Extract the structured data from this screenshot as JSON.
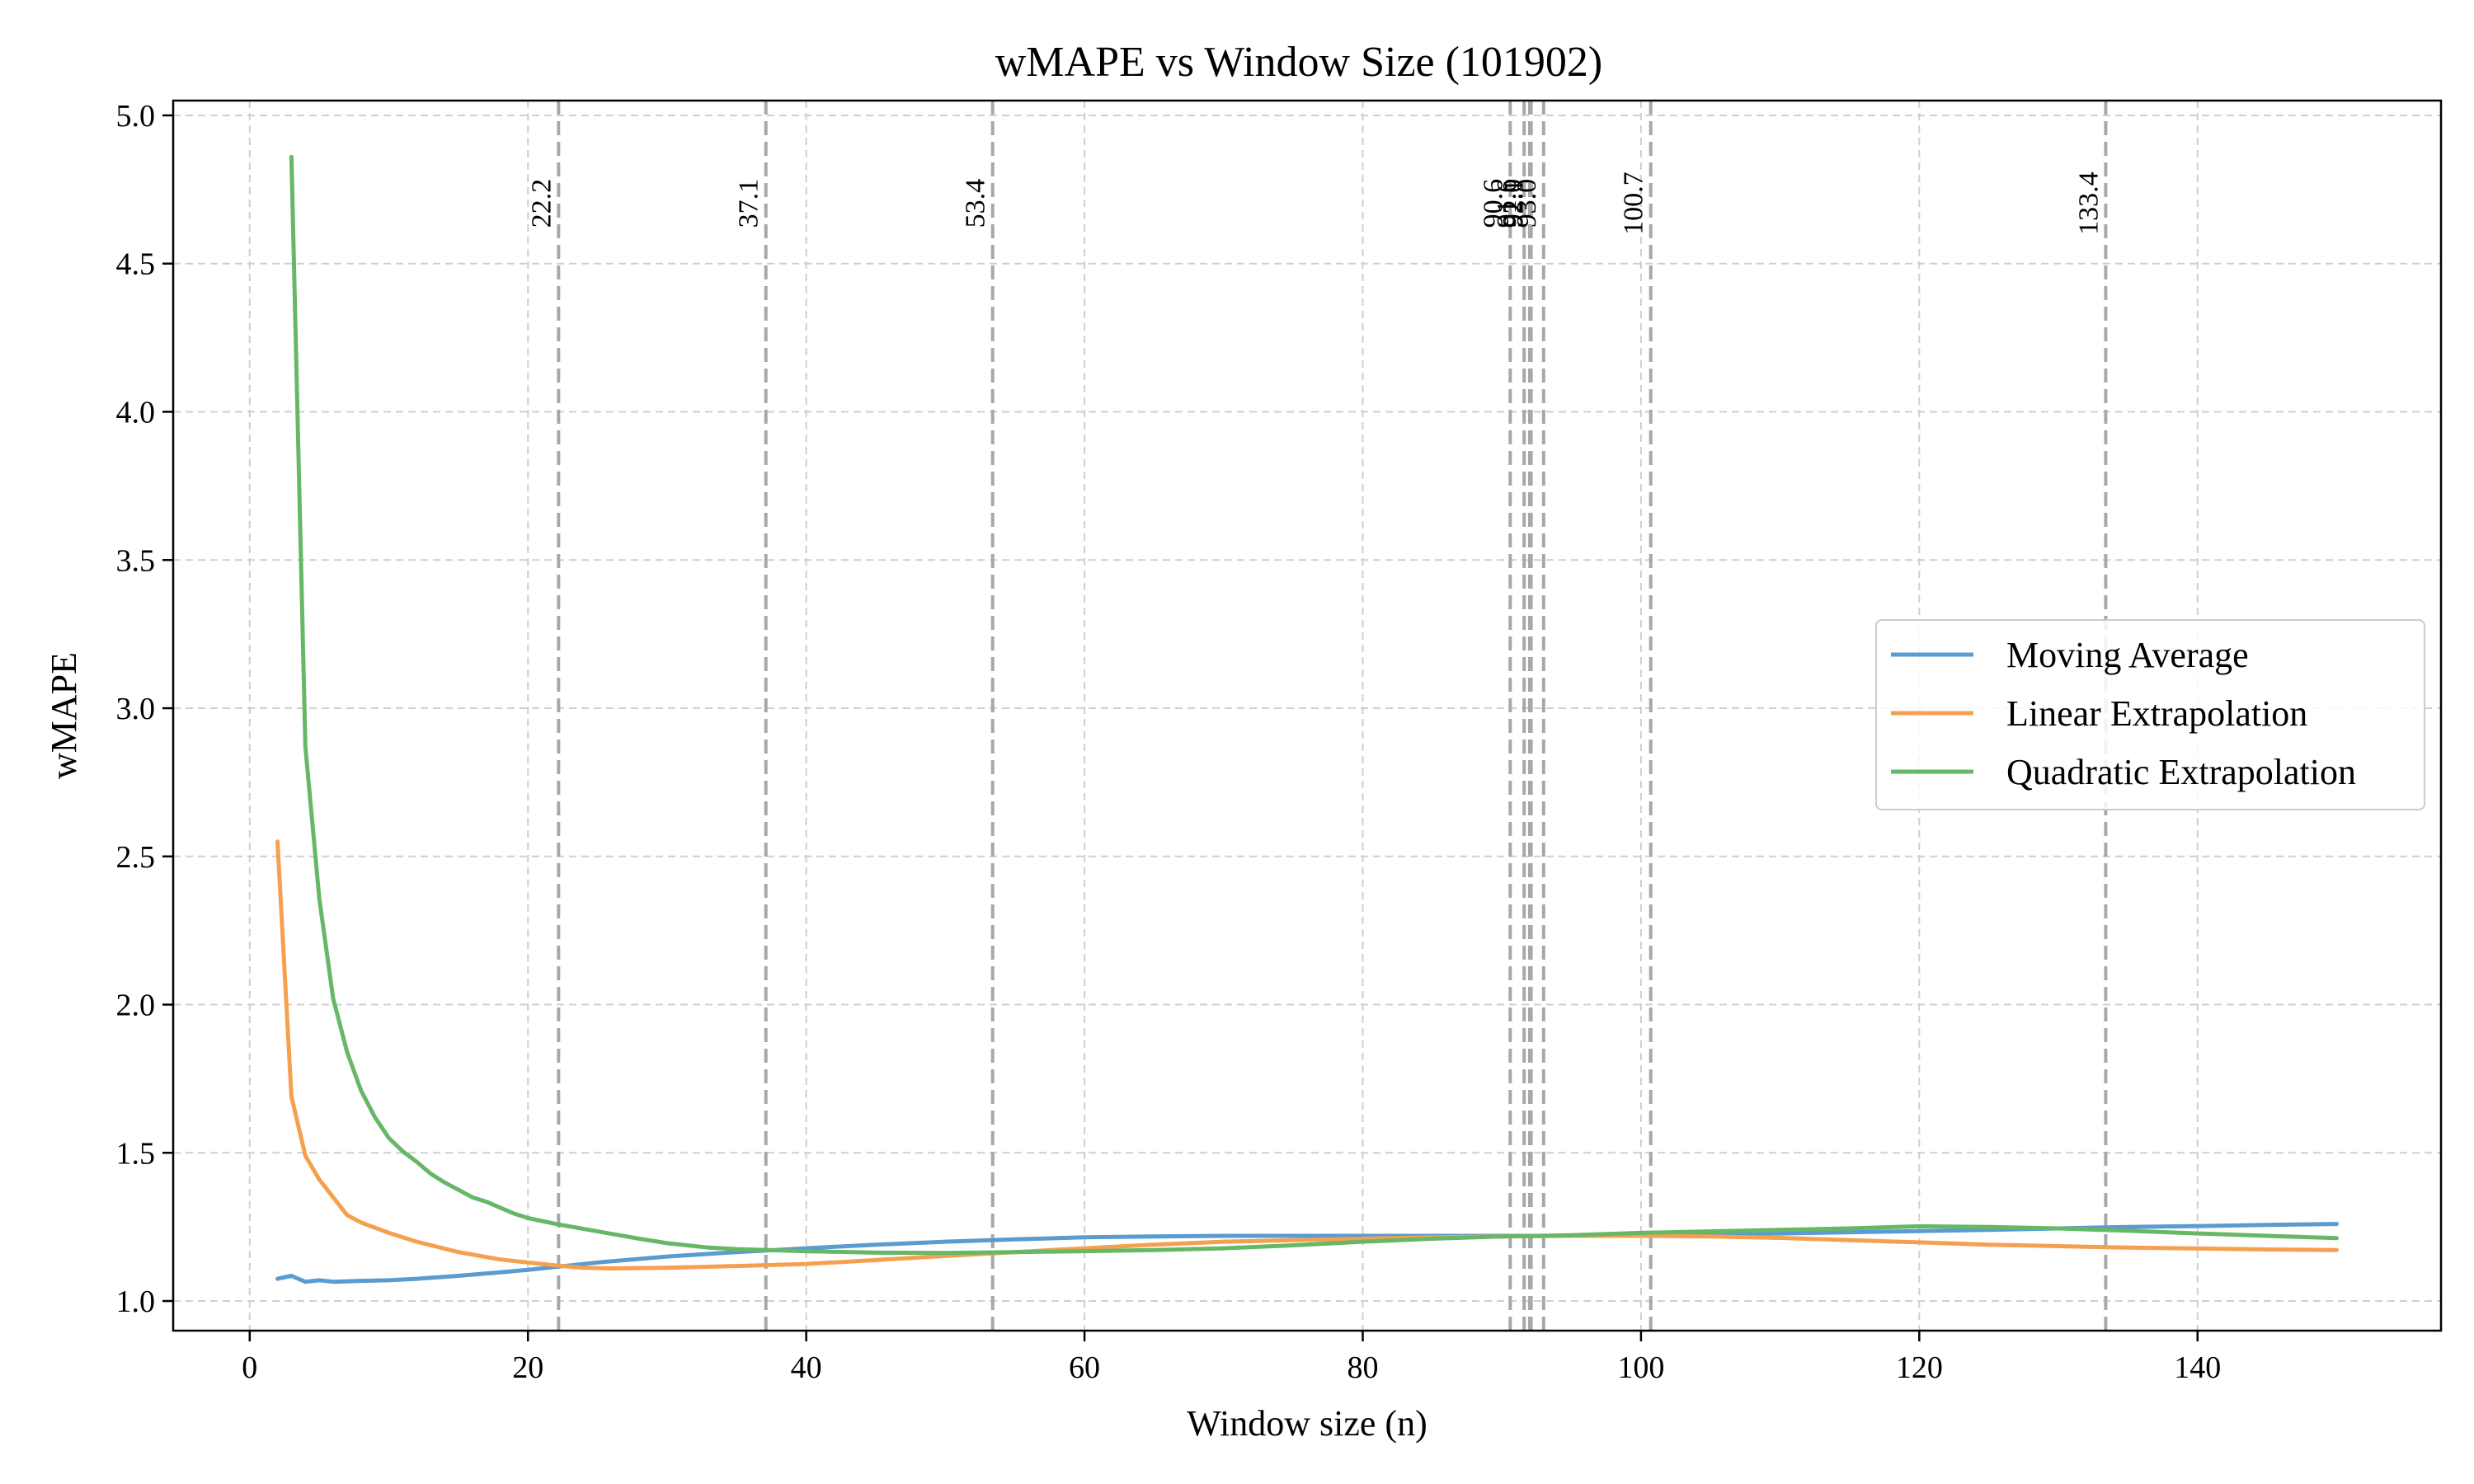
{
  "chart_data": {
    "type": "line",
    "title": "wMAPE vs Window Size (101902)",
    "xlabel": "Window size (n)",
    "ylabel": "wMAPE",
    "xlim": [
      -5.5,
      157.5
    ],
    "ylim": [
      0.9,
      5.05
    ],
    "xticks": [
      0,
      20,
      40,
      60,
      80,
      100,
      120,
      140
    ],
    "yticks": [
      1.0,
      1.5,
      2.0,
      2.5,
      3.0,
      3.5,
      4.0,
      4.5,
      5.0
    ],
    "xtick_labels": [
      "0",
      "20",
      "40",
      "60",
      "80",
      "100",
      "120",
      "140"
    ],
    "ytick_labels": [
      "1.0",
      "1.5",
      "2.0",
      "2.5",
      "3.0",
      "3.5",
      "4.0",
      "4.5",
      "5.0"
    ],
    "grid": true,
    "legend_position": "center-right",
    "vertical_lines": [
      {
        "x": 22.2,
        "label": "22.2"
      },
      {
        "x": 37.1,
        "label": "37.1"
      },
      {
        "x": 53.4,
        "label": "53.4"
      },
      {
        "x": 90.6,
        "label": "90.6"
      },
      {
        "x": 91.6,
        "label": "91.6"
      },
      {
        "x": 92.0,
        "label": "92.0"
      },
      {
        "x": 92.1,
        "label": "92.1"
      },
      {
        "x": 93.0,
        "label": "93.0"
      },
      {
        "x": 100.7,
        "label": "100.7"
      },
      {
        "x": 133.4,
        "label": "133.4"
      }
    ],
    "series": [
      {
        "name": "Moving Average",
        "color": "#5a9bd0",
        "points": [
          [
            2,
            1.075
          ],
          [
            3,
            1.085
          ],
          [
            4,
            1.065
          ],
          [
            5,
            1.07
          ],
          [
            6,
            1.065
          ],
          [
            8,
            1.068
          ],
          [
            10,
            1.07
          ],
          [
            12,
            1.075
          ],
          [
            15,
            1.085
          ],
          [
            18,
            1.097
          ],
          [
            20,
            1.105
          ],
          [
            22,
            1.115
          ],
          [
            25,
            1.13
          ],
          [
            30,
            1.15
          ],
          [
            35,
            1.165
          ],
          [
            40,
            1.178
          ],
          [
            45,
            1.19
          ],
          [
            50,
            1.2
          ],
          [
            55,
            1.208
          ],
          [
            60,
            1.215
          ],
          [
            65,
            1.218
          ],
          [
            70,
            1.22
          ],
          [
            75,
            1.22
          ],
          [
            80,
            1.22
          ],
          [
            85,
            1.22
          ],
          [
            90,
            1.22
          ],
          [
            95,
            1.22
          ],
          [
            100,
            1.222
          ],
          [
            105,
            1.225
          ],
          [
            110,
            1.228
          ],
          [
            115,
            1.232
          ],
          [
            120,
            1.236
          ],
          [
            125,
            1.24
          ],
          [
            130,
            1.245
          ],
          [
            135,
            1.25
          ],
          [
            140,
            1.253
          ],
          [
            145,
            1.257
          ],
          [
            150,
            1.26
          ]
        ]
      },
      {
        "name": "Linear Extrapolation",
        "color": "#f5a04f",
        "points": [
          [
            2,
            2.55
          ],
          [
            3,
            1.69
          ],
          [
            4,
            1.49
          ],
          [
            5,
            1.41
          ],
          [
            6,
            1.35
          ],
          [
            7,
            1.29
          ],
          [
            8,
            1.265
          ],
          [
            10,
            1.23
          ],
          [
            12,
            1.2
          ],
          [
            15,
            1.165
          ],
          [
            18,
            1.14
          ],
          [
            20,
            1.13
          ],
          [
            22,
            1.12
          ],
          [
            24,
            1.112
          ],
          [
            26,
            1.11
          ],
          [
            30,
            1.112
          ],
          [
            35,
            1.118
          ],
          [
            40,
            1.125
          ],
          [
            45,
            1.138
          ],
          [
            50,
            1.152
          ],
          [
            55,
            1.165
          ],
          [
            60,
            1.178
          ],
          [
            65,
            1.19
          ],
          [
            70,
            1.2
          ],
          [
            75,
            1.205
          ],
          [
            80,
            1.21
          ],
          [
            85,
            1.215
          ],
          [
            90,
            1.218
          ],
          [
            95,
            1.22
          ],
          [
            100,
            1.22
          ],
          [
            105,
            1.218
          ],
          [
            110,
            1.213
          ],
          [
            115,
            1.205
          ],
          [
            120,
            1.198
          ],
          [
            125,
            1.19
          ],
          [
            130,
            1.185
          ],
          [
            135,
            1.18
          ],
          [
            140,
            1.177
          ],
          [
            145,
            1.174
          ],
          [
            150,
            1.172
          ]
        ]
      },
      {
        "name": "Quadratic Extrapolation",
        "color": "#66b866",
        "points": [
          [
            3,
            4.86
          ],
          [
            4,
            2.87
          ],
          [
            5,
            2.36
          ],
          [
            6,
            2.02
          ],
          [
            7,
            1.84
          ],
          [
            8,
            1.71
          ],
          [
            9,
            1.62
          ],
          [
            10,
            1.55
          ],
          [
            11,
            1.505
          ],
          [
            12,
            1.47
          ],
          [
            13,
            1.43
          ],
          [
            14,
            1.4
          ],
          [
            15,
            1.375
          ],
          [
            16,
            1.35
          ],
          [
            17,
            1.335
          ],
          [
            18,
            1.315
          ],
          [
            19,
            1.295
          ],
          [
            20,
            1.28
          ],
          [
            21,
            1.27
          ],
          [
            22,
            1.26
          ],
          [
            25,
            1.235
          ],
          [
            28,
            1.21
          ],
          [
            30,
            1.195
          ],
          [
            33,
            1.18
          ],
          [
            35,
            1.175
          ],
          [
            40,
            1.168
          ],
          [
            45,
            1.163
          ],
          [
            50,
            1.162
          ],
          [
            55,
            1.165
          ],
          [
            60,
            1.168
          ],
          [
            65,
            1.172
          ],
          [
            70,
            1.178
          ],
          [
            75,
            1.188
          ],
          [
            80,
            1.2
          ],
          [
            85,
            1.21
          ],
          [
            90,
            1.218
          ],
          [
            95,
            1.222
          ],
          [
            100,
            1.23
          ],
          [
            105,
            1.235
          ],
          [
            110,
            1.24
          ],
          [
            115,
            1.245
          ],
          [
            120,
            1.252
          ],
          [
            125,
            1.25
          ],
          [
            130,
            1.245
          ],
          [
            135,
            1.237
          ],
          [
            140,
            1.228
          ],
          [
            145,
            1.22
          ],
          [
            150,
            1.212
          ]
        ]
      }
    ]
  }
}
